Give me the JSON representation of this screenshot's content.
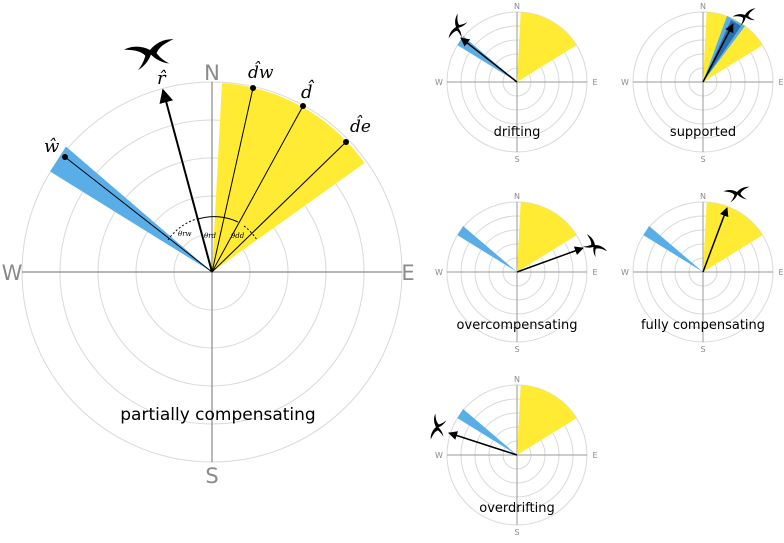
{
  "main_panel": {
    "caption": "partially compensating",
    "compass": {
      "north": "N",
      "east": "E",
      "south": "S",
      "west": "W"
    },
    "symbols": {
      "r_hat": "r̂",
      "w_hat": "ŵ",
      "d_hat": "d̂",
      "d_w_hat": "d̂w",
      "d_e_hat": "d̂e",
      "theta_rw": "θrw",
      "theta_rd": "θrd",
      "theta_dd": "θdd"
    }
  },
  "panels": [
    {
      "id": "drifting",
      "caption": "drifting"
    },
    {
      "id": "supported",
      "caption": "supported"
    },
    {
      "id": "overcompensating",
      "caption": "overcompensating"
    },
    {
      "id": "fully-compensating",
      "caption": "fully compensating"
    },
    {
      "id": "overdrifting",
      "caption": "overdrifting"
    }
  ],
  "small_compass": {
    "north": "N",
    "east": "E",
    "south": "S",
    "west": "W"
  },
  "colors": {
    "wind": "#5aaee8",
    "destination": "#ffeb33",
    "overlap": "#2a6fb0"
  }
}
